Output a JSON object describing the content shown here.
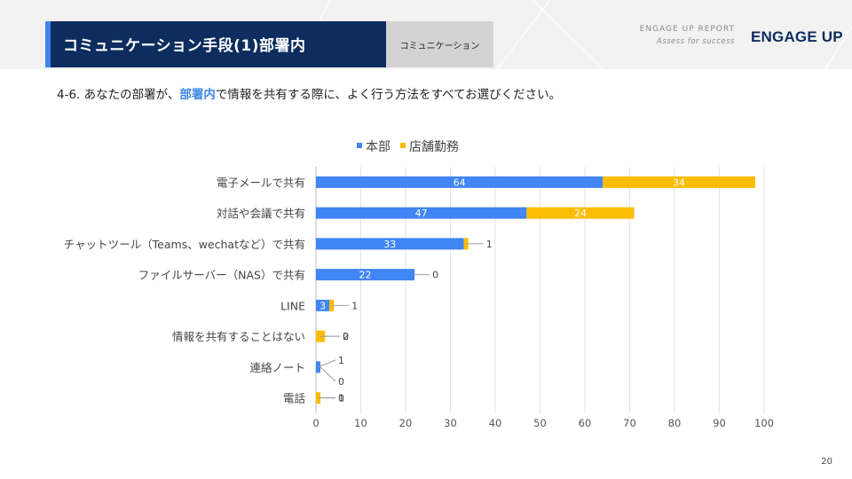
{
  "header": {
    "title": "コミュニケーション手段(1)部署内",
    "category_tag": "コミュニケーション",
    "report_name": "ENGAGE UP REPORT",
    "report_tagline": "Assess for success",
    "logo_text": "ENGAGE UP"
  },
  "question": {
    "prefix": "4-6. あなたの部署が、",
    "highlight": "部署内",
    "suffix": "で情報を共有する際に、よく行う方法をすべてお選びください。"
  },
  "page_number": "20",
  "colors": {
    "honbu": "#4285f4",
    "tenpo": "#fbbc04",
    "title_bg": "#0c2d5e",
    "accent": "#3f86e6"
  },
  "chart_data": {
    "type": "bar",
    "orientation": "horizontal",
    "stacked": true,
    "categories": [
      "電子メールで共有",
      "対話や会議で共有",
      "チャットツール（Teams、wechatなど）で共有",
      "ファイルサーバー（NAS）で共有",
      "LINE",
      "情報を共有することはない",
      "連絡ノート",
      "電話"
    ],
    "series": [
      {
        "name": "本部",
        "values": [
          64,
          47,
          33,
          22,
          3,
          0,
          1,
          0
        ]
      },
      {
        "name": "店舗勤務",
        "values": [
          34,
          24,
          1,
          0,
          1,
          2,
          0,
          1
        ]
      }
    ],
    "xlim": [
      0,
      100
    ],
    "xticks": [
      0,
      10,
      20,
      30,
      40,
      50,
      60,
      70,
      80,
      90,
      100
    ],
    "grid": true,
    "legend_position": "top"
  }
}
